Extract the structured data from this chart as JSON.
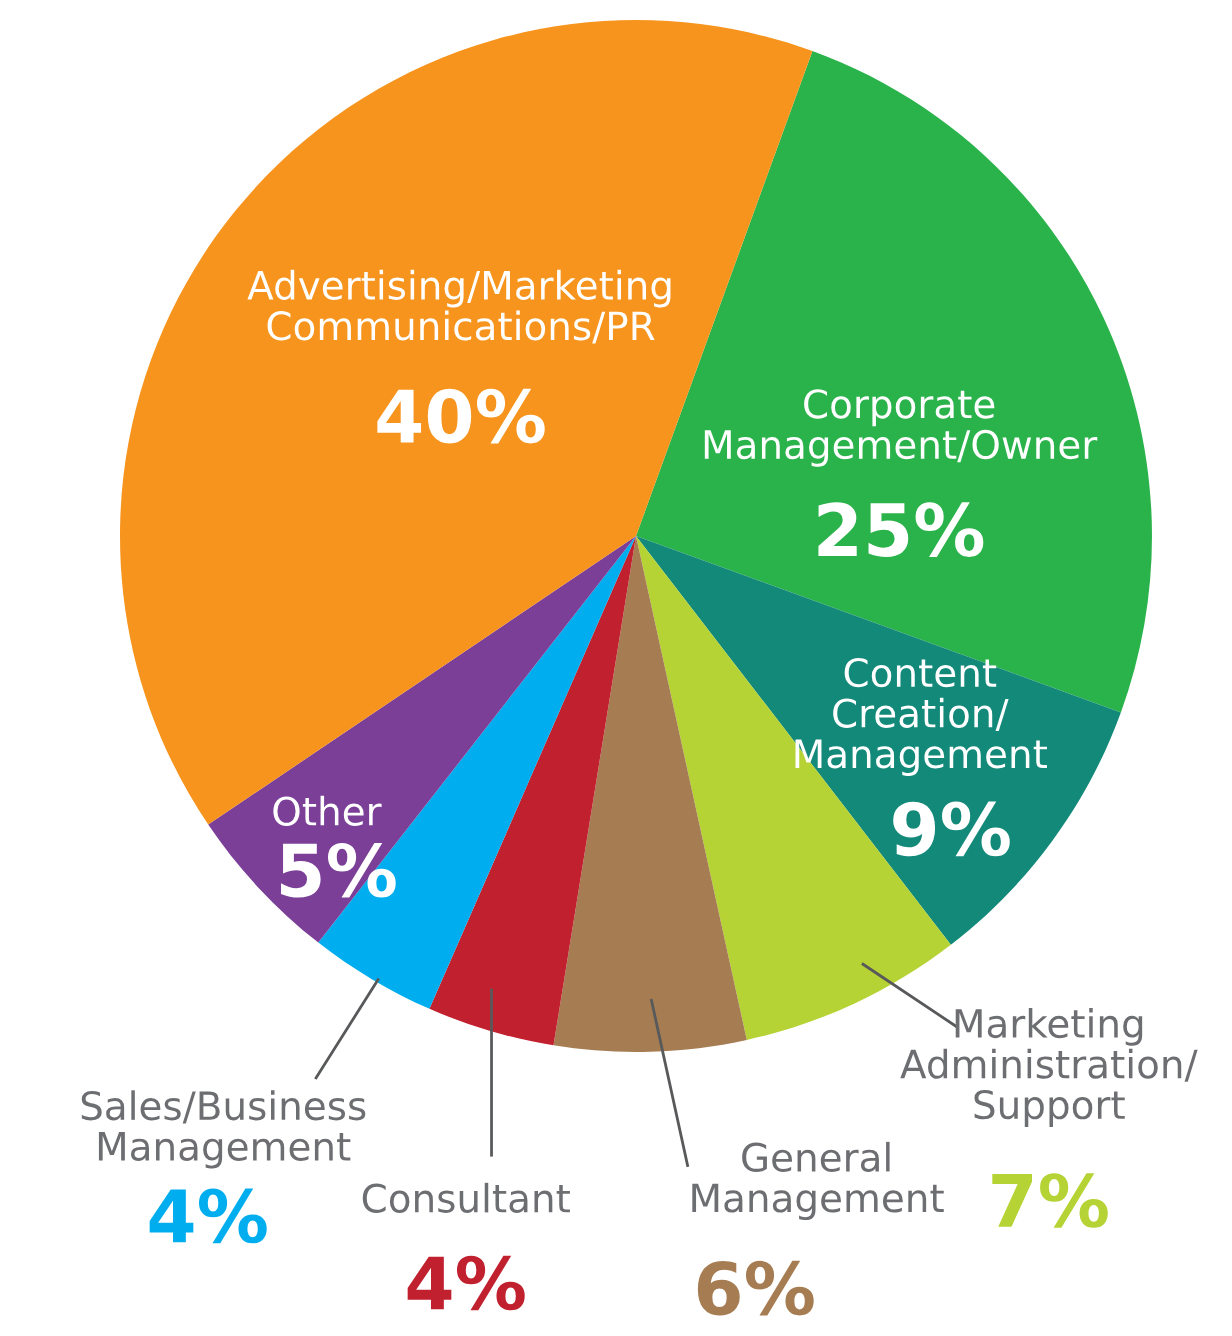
{
  "chart_data": {
    "type": "pie",
    "categories": [
      "Corporate\nManagement/Owner",
      "Content\nCreation/\nManagement",
      "Marketing\nAdministration/\nSupport",
      "General\nManagement",
      "Consultant",
      "Sales/Business\nManagement",
      "Other",
      "Advertising/Marketing\nCommunications/PR"
    ],
    "values": [
      25,
      9,
      7,
      6,
      4,
      4,
      5,
      40
    ],
    "value_labels": [
      "25%",
      "9%",
      "7%",
      "6%",
      "4%",
      "4%",
      "5%",
      "40%"
    ],
    "colors": [
      "#2bb34b",
      "#13897a",
      "#b5d334",
      "#a67c52",
      "#c1202f",
      "#00aeef",
      "#7b3f98",
      "#f7941d"
    ]
  }
}
